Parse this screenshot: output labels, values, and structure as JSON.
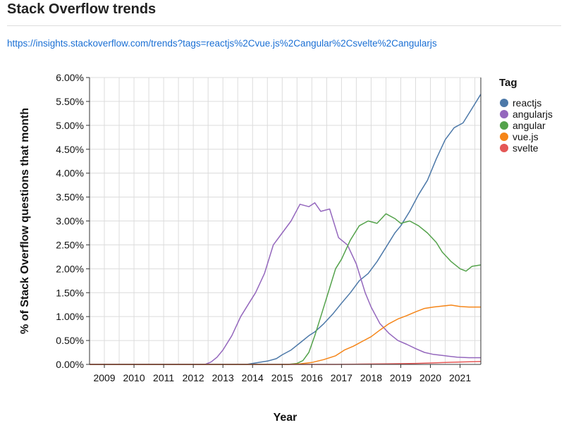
{
  "page": {
    "title": "Stack Overflow trends",
    "source_url": "https://insights.stackoverflow.com/trends?tags=reactjs%2Cvue.js%2Cangular%2Csvelte%2Cangularjs"
  },
  "chart_data": {
    "type": "line",
    "title": "",
    "xlabel": "Year",
    "ylabel": "% of Stack Overflow questions that month",
    "xlim": [
      2008.5,
      2021.7
    ],
    "ylim": [
      0,
      6
    ],
    "x_ticks": [
      2009,
      2010,
      2011,
      2012,
      2013,
      2014,
      2015,
      2016,
      2017,
      2018,
      2019,
      2020,
      2021
    ],
    "x_tick_labels": [
      "2009",
      "2010",
      "2011",
      "2012",
      "2013",
      "2014",
      "2015",
      "2016",
      "2017",
      "2018",
      "2019",
      "2020",
      "2021"
    ],
    "y_ticks": [
      0,
      0.5,
      1,
      1.5,
      2,
      2.5,
      3,
      3.5,
      4,
      4.5,
      5,
      5.5,
      6
    ],
    "y_tick_labels": [
      "0.00%",
      "0.50%",
      "1.00%",
      "1.50%",
      "2.00%",
      "2.50%",
      "3.00%",
      "3.50%",
      "4.00%",
      "4.50%",
      "5.00%",
      "5.50%",
      "6.00%"
    ],
    "grid": true,
    "legend": {
      "title": "Tag",
      "position": "right"
    },
    "series": [
      {
        "name": "reactjs",
        "color": "#4c78a8",
        "x": [
          2008.5,
          2013.8,
          2014.0,
          2014.2,
          2014.5,
          2014.8,
          2015.0,
          2015.3,
          2015.6,
          2015.9,
          2016.1,
          2016.4,
          2016.7,
          2017.0,
          2017.3,
          2017.6,
          2017.9,
          2018.2,
          2018.5,
          2018.8,
          2019.0,
          2019.3,
          2019.6,
          2019.9,
          2020.2,
          2020.5,
          2020.8,
          2021.1,
          2021.4,
          2021.7
        ],
        "values": [
          0,
          0,
          0.02,
          0.04,
          0.07,
          0.12,
          0.2,
          0.3,
          0.45,
          0.6,
          0.68,
          0.85,
          1.05,
          1.28,
          1.5,
          1.75,
          1.9,
          2.15,
          2.45,
          2.75,
          2.9,
          3.2,
          3.55,
          3.85,
          4.3,
          4.7,
          4.95,
          5.05,
          5.35,
          5.65
        ]
      },
      {
        "name": "angularjs",
        "color": "#9467bd",
        "x": [
          2008.5,
          2012.4,
          2012.6,
          2012.8,
          2013.0,
          2013.3,
          2013.6,
          2013.9,
          2014.1,
          2014.4,
          2014.7,
          2015.0,
          2015.3,
          2015.6,
          2015.9,
          2016.1,
          2016.3,
          2016.6,
          2016.9,
          2017.2,
          2017.5,
          2017.8,
          2018.0,
          2018.3,
          2018.6,
          2018.9,
          2019.2,
          2019.5,
          2019.8,
          2020.1,
          2020.5,
          2020.9,
          2021.3,
          2021.7
        ],
        "values": [
          0,
          0,
          0.05,
          0.15,
          0.3,
          0.6,
          1.0,
          1.3,
          1.5,
          1.9,
          2.5,
          2.75,
          3.0,
          3.35,
          3.3,
          3.38,
          3.2,
          3.25,
          2.65,
          2.5,
          2.1,
          1.5,
          1.2,
          0.85,
          0.65,
          0.5,
          0.42,
          0.33,
          0.25,
          0.21,
          0.18,
          0.15,
          0.14,
          0.14
        ]
      },
      {
        "name": "angular",
        "color": "#54a24b",
        "x": [
          2008.5,
          2015.2,
          2015.5,
          2015.7,
          2015.9,
          2016.1,
          2016.3,
          2016.6,
          2016.8,
          2017.0,
          2017.3,
          2017.6,
          2017.9,
          2018.2,
          2018.5,
          2018.8,
          2019.0,
          2019.3,
          2019.6,
          2019.9,
          2020.2,
          2020.4,
          2020.7,
          2021.0,
          2021.2,
          2021.4,
          2021.7
        ],
        "values": [
          0,
          0,
          0.02,
          0.08,
          0.25,
          0.6,
          1.0,
          1.6,
          2.0,
          2.2,
          2.6,
          2.9,
          3.0,
          2.95,
          3.15,
          3.05,
          2.95,
          3.0,
          2.9,
          2.75,
          2.55,
          2.35,
          2.15,
          2.0,
          1.95,
          2.05,
          2.08
        ]
      },
      {
        "name": "vue.js",
        "color": "#f58518",
        "x": [
          2008.5,
          2015.2,
          2015.6,
          2016.0,
          2016.4,
          2016.8,
          2017.1,
          2017.4,
          2017.7,
          2018.0,
          2018.3,
          2018.6,
          2018.9,
          2019.2,
          2019.5,
          2019.8,
          2020.1,
          2020.4,
          2020.7,
          2021.0,
          2021.3,
          2021.7
        ],
        "values": [
          0,
          0,
          0.01,
          0.04,
          0.1,
          0.18,
          0.3,
          0.38,
          0.48,
          0.58,
          0.72,
          0.85,
          0.95,
          1.02,
          1.1,
          1.17,
          1.2,
          1.22,
          1.24,
          1.21,
          1.2,
          1.2
        ]
      },
      {
        "name": "svelte",
        "color": "#e45756",
        "x": [
          2008.5,
          2016.8,
          2017.5,
          2018.5,
          2019.5,
          2020.0,
          2020.5,
          2021.0,
          2021.7
        ],
        "values": [
          0,
          0,
          0.005,
          0.01,
          0.02,
          0.03,
          0.04,
          0.05,
          0.06
        ]
      }
    ]
  }
}
